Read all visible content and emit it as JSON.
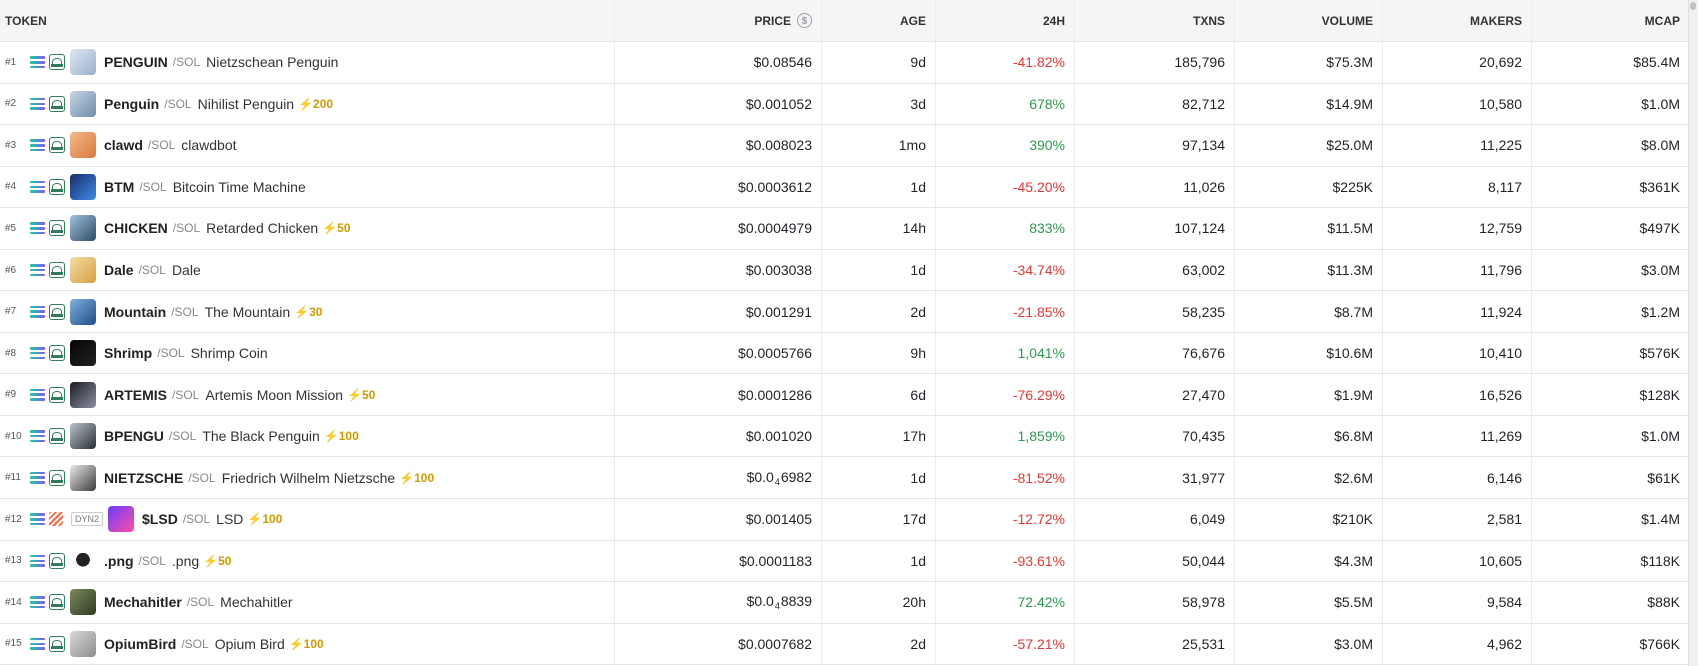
{
  "header": {
    "token": "TOKEN",
    "price": "PRICE",
    "price_icon": "$",
    "age": "AGE",
    "change": "24H",
    "txns": "TXNS",
    "volume": "VOLUME",
    "makers": "MAKERS",
    "mcap": "MCAP"
  },
  "colors": {
    "negative": "#e53935",
    "positive": "#2e9b4e",
    "boost": "#d19a00"
  },
  "rows": [
    {
      "rank": "#1",
      "symbol": "PENGUIN",
      "quote": "/SOL",
      "name": "Nietzschean Penguin",
      "boost": "",
      "dex": "raydium",
      "badge": "",
      "price": "$0.08546",
      "price_pre": "",
      "price_sub": "",
      "price_post": "",
      "age": "9d",
      "change": "-41.82%",
      "dir": "neg",
      "txns": "185,796",
      "volume": "$75.3M",
      "makers": "20,692",
      "mcap": "$85.4M",
      "avatar": "linear-gradient(135deg,#dfe7f2,#9bb0cc)"
    },
    {
      "rank": "#2",
      "symbol": "Penguin",
      "quote": "/SOL",
      "name": "Nihilist Penguin",
      "boost": "⚡200",
      "dex": "raydium",
      "badge": "",
      "price": "$0.001052",
      "price_pre": "",
      "price_sub": "",
      "price_post": "",
      "age": "3d",
      "change": "678%",
      "dir": "pos",
      "txns": "82,712",
      "volume": "$14.9M",
      "makers": "10,580",
      "mcap": "$1.0M",
      "avatar": "linear-gradient(135deg,#c9d6e6,#6d8aa8)"
    },
    {
      "rank": "#3",
      "symbol": "clawd",
      "quote": "/SOL",
      "name": "clawdbot",
      "boost": "",
      "dex": "raydium",
      "badge": "",
      "price": "$0.008023",
      "price_pre": "",
      "price_sub": "",
      "price_post": "",
      "age": "1mo",
      "change": "390%",
      "dir": "pos",
      "txns": "97,134",
      "volume": "$25.0M",
      "makers": "11,225",
      "mcap": "$8.0M",
      "avatar": "linear-gradient(135deg,#f4b98a,#d9793c)"
    },
    {
      "rank": "#4",
      "symbol": "BTM",
      "quote": "/SOL",
      "name": "Bitcoin Time Machine",
      "boost": "",
      "dex": "raydium",
      "badge": "",
      "price": "$0.0003612",
      "price_pre": "",
      "price_sub": "",
      "price_post": "",
      "age": "1d",
      "change": "-45.20%",
      "dir": "neg",
      "txns": "11,026",
      "volume": "$225K",
      "makers": "8,117",
      "mcap": "$361K",
      "avatar": "linear-gradient(135deg,#1b2a6b,#3c8ee8)"
    },
    {
      "rank": "#5",
      "symbol": "CHICKEN",
      "quote": "/SOL",
      "name": "Retarded Chicken",
      "boost": "⚡50",
      "dex": "raydium",
      "badge": "",
      "price": "$0.0004979",
      "price_pre": "",
      "price_sub": "",
      "price_post": "",
      "age": "14h",
      "change": "833%",
      "dir": "pos",
      "txns": "107,124",
      "volume": "$11.5M",
      "makers": "12,759",
      "mcap": "$497K",
      "avatar": "linear-gradient(135deg,#9fc2de,#2e4a66)"
    },
    {
      "rank": "#6",
      "symbol": "Dale",
      "quote": "/SOL",
      "name": "Dale",
      "boost": "",
      "dex": "raydium",
      "badge": "",
      "price": "$0.003038",
      "price_pre": "",
      "price_sub": "",
      "price_post": "",
      "age": "1d",
      "change": "-34.74%",
      "dir": "neg",
      "txns": "63,002",
      "volume": "$11.3M",
      "makers": "11,796",
      "mcap": "$3.0M",
      "avatar": "linear-gradient(135deg,#f3dca4,#d6a144)"
    },
    {
      "rank": "#7",
      "symbol": "Mountain",
      "quote": "/SOL",
      "name": "The Mountain",
      "boost": "⚡30",
      "dex": "raydium",
      "badge": "",
      "price": "$0.001291",
      "price_pre": "",
      "price_sub": "",
      "price_post": "",
      "age": "2d",
      "change": "-21.85%",
      "dir": "neg",
      "txns": "58,235",
      "volume": "$8.7M",
      "makers": "11,924",
      "mcap": "$1.2M",
      "avatar": "linear-gradient(135deg,#7fb0e0,#1f4e86)"
    },
    {
      "rank": "#8",
      "symbol": "Shrimp",
      "quote": "/SOL",
      "name": "Shrimp Coin",
      "boost": "",
      "dex": "raydium",
      "badge": "",
      "price": "$0.0005766",
      "price_pre": "",
      "price_sub": "",
      "price_post": "",
      "age": "9h",
      "change": "1,041%",
      "dir": "pos",
      "txns": "76,676",
      "volume": "$10.6M",
      "makers": "10,410",
      "mcap": "$576K",
      "avatar": "linear-gradient(135deg,#050505,#222222)"
    },
    {
      "rank": "#9",
      "symbol": "ARTEMIS",
      "quote": "/SOL",
      "name": "Artemis Moon Mission",
      "boost": "⚡50",
      "dex": "raydium",
      "badge": "",
      "price": "$0.0001286",
      "price_pre": "",
      "price_sub": "",
      "price_post": "",
      "age": "6d",
      "change": "-76.29%",
      "dir": "neg",
      "txns": "27,470",
      "volume": "$1.9M",
      "makers": "16,526",
      "mcap": "$128K",
      "avatar": "linear-gradient(135deg,#1b1b24,#8a8fa0)"
    },
    {
      "rank": "#10",
      "symbol": "BPENGU",
      "quote": "/SOL",
      "name": "The Black Penguin",
      "boost": "⚡100",
      "dex": "raydium",
      "badge": "",
      "price": "$0.001020",
      "price_pre": "",
      "price_sub": "",
      "price_post": "",
      "age": "17h",
      "change": "1,859%",
      "dir": "pos",
      "txns": "70,435",
      "volume": "$6.8M",
      "makers": "11,269",
      "mcap": "$1.0M",
      "avatar": "linear-gradient(135deg,#b9c2cc,#2a2f36)"
    },
    {
      "rank": "#11",
      "symbol": "NIETZSCHE",
      "quote": "/SOL",
      "name": "Friedrich Wilhelm Nietzsche",
      "boost": "⚡100",
      "dex": "raydium",
      "badge": "",
      "price": "",
      "price_pre": "$0.0",
      "price_sub": "4",
      "price_post": "6982",
      "age": "1d",
      "change": "-81.52%",
      "dir": "neg",
      "txns": "31,977",
      "volume": "$2.6M",
      "makers": "6,146",
      "mcap": "$61K",
      "avatar": "linear-gradient(135deg,#e9e9e9,#3b3b3b)"
    },
    {
      "rank": "#12",
      "symbol": "$LSD",
      "quote": "/SOL",
      "name": "LSD",
      "boost": "⚡100",
      "dex": "meteora",
      "badge": "DYN2",
      "price": "$0.001405",
      "price_pre": "",
      "price_sub": "",
      "price_post": "",
      "age": "17d",
      "change": "-12.72%",
      "dir": "neg",
      "txns": "6,049",
      "volume": "$210K",
      "makers": "2,581",
      "mcap": "$1.4M",
      "avatar": "linear-gradient(135deg,#6b3cff,#ff4ea3)"
    },
    {
      "rank": "#13",
      "symbol": ".png",
      "quote": "/SOL",
      "name": ".png",
      "boost": "⚡50",
      "dex": "raydium",
      "badge": "",
      "price": "$0.0001183",
      "price_pre": "",
      "price_sub": "",
      "price_post": "",
      "age": "1d",
      "change": "-93.61%",
      "dir": "neg",
      "txns": "50,044",
      "volume": "$4.3M",
      "makers": "10,605",
      "mcap": "$118K",
      "avatar": "radial-gradient(circle at 50% 45%,#222 0 35%,#fff 36%)"
    },
    {
      "rank": "#14",
      "symbol": "Mechahitler",
      "quote": "/SOL",
      "name": "Mechahitler",
      "boost": "",
      "dex": "raydium",
      "badge": "",
      "price": "",
      "price_pre": "$0.0",
      "price_sub": "4",
      "price_post": "8839",
      "age": "20h",
      "change": "72.42%",
      "dir": "pos",
      "txns": "58,978",
      "volume": "$5.5M",
      "makers": "9,584",
      "mcap": "$88K",
      "avatar": "linear-gradient(135deg,#7a8a5a,#2e3b25)"
    },
    {
      "rank": "#15",
      "symbol": "OpiumBird",
      "quote": "/SOL",
      "name": "Opium Bird",
      "boost": "⚡100",
      "dex": "raydium",
      "badge": "",
      "price": "$0.0007682",
      "price_pre": "",
      "price_sub": "",
      "price_post": "",
      "age": "2d",
      "change": "-57.21%",
      "dir": "neg",
      "txns": "25,531",
      "volume": "$3.0M",
      "makers": "4,962",
      "mcap": "$766K",
      "avatar": "linear-gradient(135deg,#d9d9d9,#8c8c8c)"
    }
  ]
}
